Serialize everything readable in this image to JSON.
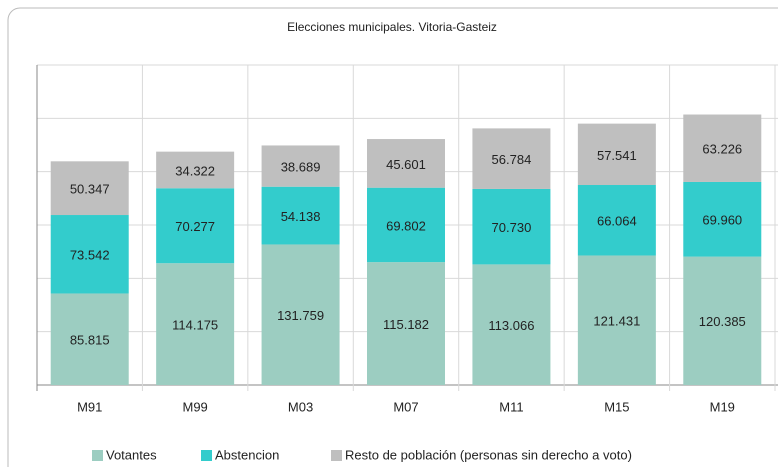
{
  "chart_data": {
    "type": "stacked_bar",
    "title": "Elecciones municipales. Vitoria-Gasteiz",
    "categories": [
      "M91",
      "M99",
      "M03",
      "M07",
      "M11",
      "M15",
      "M19"
    ],
    "series": [
      {
        "name": "Votantes",
        "color": "#9ccdc1",
        "values": [
          85815,
          114175,
          131759,
          115182,
          113066,
          121431,
          120385
        ],
        "value_labels": [
          "85.815",
          "114.175",
          "131.759",
          "115.182",
          "113.066",
          "121.431",
          "120.385"
        ]
      },
      {
        "name": "Abstencion",
        "color": "#33cccc",
        "values": [
          73542,
          70277,
          54138,
          69802,
          70730,
          66064,
          69960
        ],
        "value_labels": [
          "73.542",
          "70.277",
          "54.138",
          "69.802",
          "70.730",
          "66.064",
          "69.960"
        ]
      },
      {
        "name": "Resto de población (personas sin derecho a voto)",
        "color": "#bfbfbf",
        "values": [
          50347,
          34322,
          38689,
          45601,
          56784,
          57541,
          63226
        ],
        "value_labels": [
          "50.347",
          "34.322",
          "38.689",
          "45.601",
          "56.784",
          "57.541",
          "63.226"
        ]
      }
    ],
    "ylim": [
      0,
      300000
    ],
    "yticks": [
      0,
      50000,
      100000,
      150000,
      200000,
      250000,
      300000
    ],
    "grid": true,
    "legend": "bottom"
  }
}
